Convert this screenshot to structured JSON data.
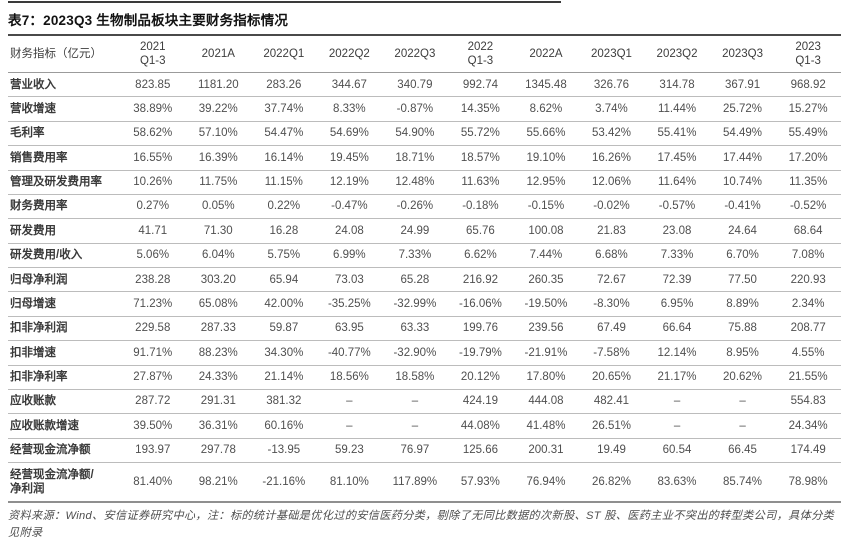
{
  "title": "表7：2023Q3 生物制品板块主要财务指标情况",
  "table": {
    "metric_label": "财务指标（亿元）",
    "columns": [
      "2021\nQ1-3",
      "2021A",
      "2022Q1",
      "2022Q2",
      "2022Q3",
      "2022\nQ1-3",
      "2022A",
      "2023Q1",
      "2023Q2",
      "2023Q3",
      "2023\nQ1-3"
    ],
    "rows": [
      {
        "label": "营业收入",
        "values": [
          "823.85",
          "1181.20",
          "283.26",
          "344.67",
          "340.79",
          "992.74",
          "1345.48",
          "326.76",
          "314.78",
          "367.91",
          "968.92"
        ]
      },
      {
        "label": "营收增速",
        "values": [
          "38.89%",
          "39.22%",
          "37.74%",
          "8.33%",
          "-0.87%",
          "14.35%",
          "8.62%",
          "3.74%",
          "11.44%",
          "25.72%",
          "15.27%"
        ]
      },
      {
        "label": "毛利率",
        "values": [
          "58.62%",
          "57.10%",
          "54.47%",
          "54.69%",
          "54.90%",
          "55.72%",
          "55.66%",
          "53.42%",
          "55.41%",
          "54.49%",
          "55.49%"
        ]
      },
      {
        "label": "销售费用率",
        "values": [
          "16.55%",
          "16.39%",
          "16.14%",
          "19.45%",
          "18.71%",
          "18.57%",
          "19.10%",
          "16.26%",
          "17.45%",
          "17.44%",
          "17.20%"
        ]
      },
      {
        "label": "管理及研发费用率",
        "values": [
          "10.26%",
          "11.75%",
          "11.15%",
          "12.19%",
          "12.48%",
          "11.63%",
          "12.95%",
          "12.06%",
          "11.64%",
          "10.74%",
          "11.35%"
        ]
      },
      {
        "label": "财务费用率",
        "values": [
          "0.27%",
          "0.05%",
          "0.22%",
          "-0.47%",
          "-0.26%",
          "-0.18%",
          "-0.15%",
          "-0.02%",
          "-0.57%",
          "-0.41%",
          "-0.52%"
        ]
      },
      {
        "label": "研发费用",
        "values": [
          "41.71",
          "71.30",
          "16.28",
          "24.08",
          "24.99",
          "65.76",
          "100.08",
          "21.83",
          "23.08",
          "24.64",
          "68.64"
        ]
      },
      {
        "label": "研发费用/收入",
        "values": [
          "5.06%",
          "6.04%",
          "5.75%",
          "6.99%",
          "7.33%",
          "6.62%",
          "7.44%",
          "6.68%",
          "7.33%",
          "6.70%",
          "7.08%"
        ]
      },
      {
        "label": "归母净利润",
        "values": [
          "238.28",
          "303.20",
          "65.94",
          "73.03",
          "65.28",
          "216.92",
          "260.35",
          "72.67",
          "72.39",
          "77.50",
          "220.93"
        ]
      },
      {
        "label": "归母增速",
        "values": [
          "71.23%",
          "65.08%",
          "42.00%",
          "-35.25%",
          "-32.99%",
          "-16.06%",
          "-19.50%",
          "-8.30%",
          "6.95%",
          "8.89%",
          "2.34%"
        ]
      },
      {
        "label": "扣非净利润",
        "values": [
          "229.58",
          "287.33",
          "59.87",
          "63.95",
          "63.33",
          "199.76",
          "239.56",
          "67.49",
          "66.64",
          "75.88",
          "208.77"
        ]
      },
      {
        "label": "扣非增速",
        "values": [
          "91.71%",
          "88.23%",
          "34.30%",
          "-40.77%",
          "-32.90%",
          "-19.79%",
          "-21.91%",
          "-7.58%",
          "12.14%",
          "8.95%",
          "4.55%"
        ]
      },
      {
        "label": "扣非净利率",
        "values": [
          "27.87%",
          "24.33%",
          "21.14%",
          "18.56%",
          "18.58%",
          "20.12%",
          "17.80%",
          "20.65%",
          "21.17%",
          "20.62%",
          "21.55%"
        ]
      },
      {
        "label": "应收账款",
        "values": [
          "287.72",
          "291.31",
          "381.32",
          "–",
          "–",
          "424.19",
          "444.08",
          "482.41",
          "–",
          "–",
          "554.83"
        ]
      },
      {
        "label": "应收账款增速",
        "values": [
          "39.50%",
          "36.31%",
          "60.16%",
          "–",
          "–",
          "44.08%",
          "41.48%",
          "26.51%",
          "–",
          "–",
          "24.34%"
        ]
      },
      {
        "label": "经营现金流净额",
        "values": [
          "193.97",
          "297.78",
          "-13.95",
          "59.23",
          "76.97",
          "125.66",
          "200.31",
          "19.49",
          "60.54",
          "66.45",
          "174.49"
        ]
      },
      {
        "label": "经营现金流净额/\n净利润",
        "values": [
          "81.40%",
          "98.21%",
          "-21.16%",
          "81.10%",
          "117.89%",
          "57.93%",
          "76.94%",
          "26.82%",
          "83.63%",
          "85.74%",
          "78.98%"
        ]
      }
    ]
  },
  "footnote": "资料来源：Wind、安信证券研究中心，注：标的统计基础是优化过的安信医药分类，剔除了无同比数据的次新股、ST 股、医药主业不突出的转型类公司，具体分类见附录"
}
